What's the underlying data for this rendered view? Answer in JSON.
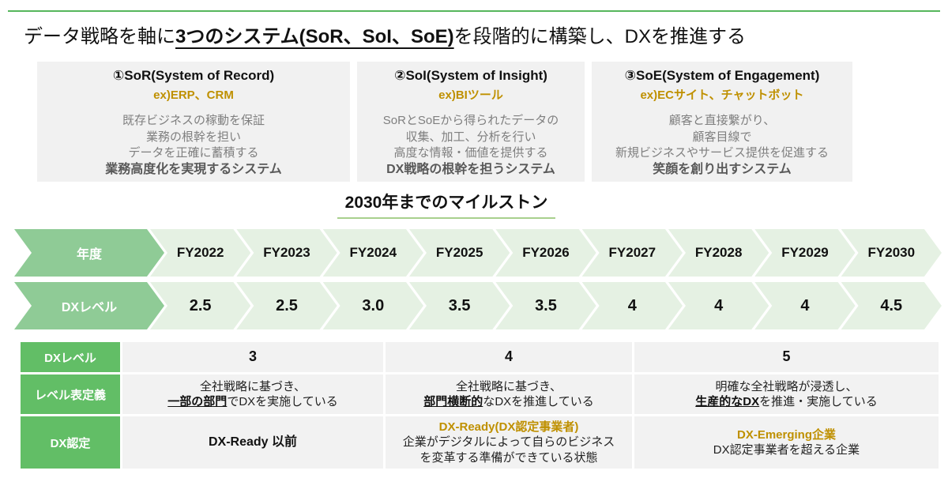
{
  "title": {
    "prefix": "データ戦略を軸に",
    "emphasis": "3つのシステム(SoR、SoI、SoE)",
    "suffix": "を段階的に構築し、DXを推進する"
  },
  "systems": [
    {
      "title": "①SoR(System of Record)",
      "example": "ex)ERP、CRM",
      "lines": [
        "既存ビジネスの稼動を保証",
        "業務の根幹を担い",
        "データを正確に蓄積する"
      ],
      "highlight": "業務高度化を実現するシステム"
    },
    {
      "title": "②SoI(System of Insight)",
      "example": "ex)BIツール",
      "lines": [
        "SoRとSoEから得られたデータの",
        "収集、加工、分析を行い",
        "高度な情報・価値を提供する"
      ],
      "highlight": "DX戦略の根幹を担うシステム"
    },
    {
      "title": "③SoE(System of Engagement)",
      "example": "ex)ECサイト、チャットボット",
      "lines": [
        "顧客と直接繋がり、",
        "顧客目線で",
        "新規ビジネスやサービス提供を促進する"
      ],
      "highlight": "笑顔を創り出すシステム"
    }
  ],
  "milestone": {
    "heading": "2030年までのマイルストン",
    "year_label": "年度",
    "level_label": "DXレベル",
    "years": [
      "FY2022",
      "FY2023",
      "FY2024",
      "FY2025",
      "FY2026",
      "FY2027",
      "FY2028",
      "FY2029",
      "FY2030"
    ],
    "levels": [
      "2.5",
      "2.5",
      "3.0",
      "3.5",
      "3.5",
      "4",
      "4",
      "4",
      "4.5"
    ]
  },
  "level_table": {
    "header_level": "DXレベル",
    "header_definition": "レベル表定義",
    "header_certification": "DX認定",
    "levels": [
      "3",
      "4",
      "5"
    ],
    "definitions": [
      {
        "line1": "全社戦略に基づき、",
        "em": "一部の部門",
        "rest": "でDXを実施している"
      },
      {
        "line1": "全社戦略に基づき、",
        "em": "部門横断的",
        "rest": "なDXを推進している"
      },
      {
        "line1": "明確な全社戦略が浸透し、",
        "em": "生産的なDX",
        "rest": "を推進・実施している"
      }
    ],
    "certifications": [
      {
        "title": "DX-Ready 以前",
        "line1": "",
        "line2": ""
      },
      {
        "title": "DX-Ready(DX認定事業者)",
        "line1": "企業がデジタルによって自らのビジネス",
        "line2": "を変革する準備ができている状態"
      },
      {
        "title": "DX-Emerging企業",
        "line1": "DX認定事業者を超える企業",
        "line2": ""
      }
    ]
  },
  "colors": {
    "accent_rule_green": "#56b65c",
    "chevron_label_green": "#8fcb96",
    "chevron_light_green": "#e5f1e3",
    "table_header_green": "#62be66",
    "heading_underline_green": "#a8d08d",
    "gold_accent": "#bf9000",
    "card_gray": "#f1f1f1",
    "cell_gray": "#f2f2f2"
  }
}
